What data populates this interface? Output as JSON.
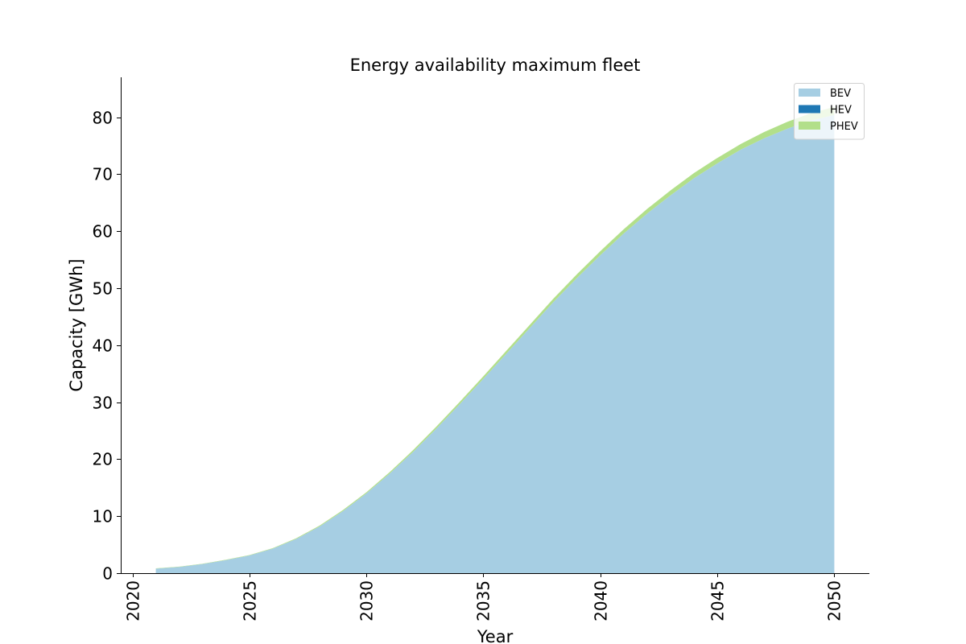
{
  "chart_data": {
    "type": "area",
    "stacked": true,
    "title": "Energy availability maximum fleet",
    "xlabel": "Year",
    "ylabel": "Capacity [GWh]",
    "xlim": [
      2019.5,
      2051.5
    ],
    "ylim": [
      0,
      87
    ],
    "xticks": [
      2020,
      2025,
      2030,
      2035,
      2040,
      2045,
      2050
    ],
    "yticks": [
      0,
      10,
      20,
      30,
      40,
      50,
      60,
      70,
      80
    ],
    "x_tick_rotation": "vertical",
    "grid": false,
    "legend": {
      "placement": "top-right"
    },
    "x": [
      2021,
      2022,
      2023,
      2024,
      2025,
      2026,
      2027,
      2028,
      2029,
      2030,
      2031,
      2032,
      2033,
      2034,
      2035,
      2036,
      2037,
      2038,
      2039,
      2040,
      2041,
      2042,
      2043,
      2044,
      2045,
      2046,
      2047,
      2048,
      2049,
      2050
    ],
    "series": [
      {
        "name": "BEV",
        "color": "#a6cee3",
        "values": [
          0.8,
          1.1,
          1.6,
          2.3,
          3.1,
          4.3,
          6.0,
          8.2,
          10.9,
          14.0,
          17.5,
          21.3,
          25.4,
          29.7,
          34.1,
          38.6,
          43.1,
          47.6,
          51.8,
          55.8,
          59.6,
          63.1,
          66.3,
          69.3,
          71.9,
          74.3,
          76.3,
          78.0,
          79.4,
          80.4
        ]
      },
      {
        "name": "HEV",
        "color": "#1f78b4",
        "values": [
          0.0,
          0.0,
          0.0,
          0.0,
          0.0,
          0.0,
          0.0,
          0.0,
          0.0,
          0.0,
          0.0,
          0.0,
          0.0,
          0.0,
          0.0,
          0.0,
          0.0,
          0.0,
          0.0,
          0.0,
          0.0,
          0.0,
          0.0,
          0.0,
          0.0,
          0.0,
          0.0,
          0.0,
          0.0,
          0.0
        ]
      },
      {
        "name": "PHEV",
        "color": "#b2df8a",
        "values": [
          0.05,
          0.05,
          0.06,
          0.07,
          0.08,
          0.1,
          0.12,
          0.15,
          0.18,
          0.2,
          0.25,
          0.3,
          0.35,
          0.4,
          0.45,
          0.5,
          0.55,
          0.6,
          0.65,
          0.7,
          0.75,
          0.8,
          0.85,
          0.9,
          0.95,
          1.0,
          1.1,
          1.2,
          1.3,
          1.4
        ]
      }
    ]
  }
}
